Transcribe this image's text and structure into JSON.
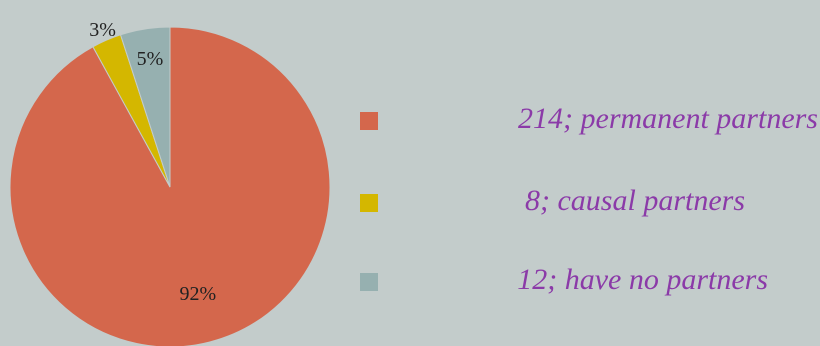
{
  "chart_data": {
    "type": "pie",
    "categories": [
      "214; permanent partners",
      "8; causal partners",
      "12; have no partners"
    ],
    "values": [
      92,
      3,
      5
    ],
    "value_labels": [
      "92%",
      "3%",
      "5%"
    ],
    "colors": [
      "#d4674c",
      "#d4b700",
      "#96b0b0"
    ],
    "legend": "right"
  }
}
